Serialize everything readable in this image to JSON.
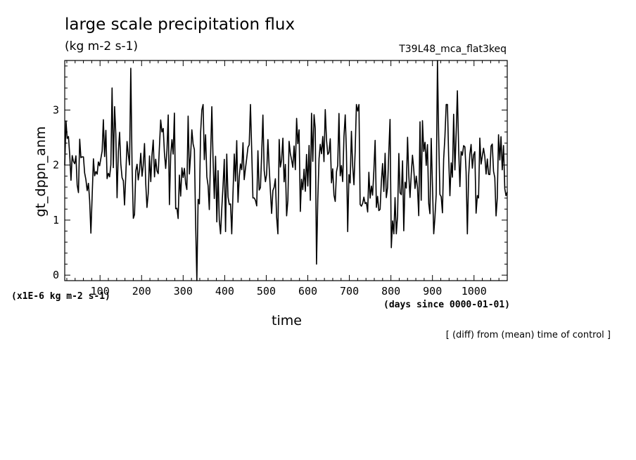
{
  "chart_data": {
    "type": "line",
    "title": "large scale precipitation flux",
    "units": "(kg m-2 s-1)",
    "experiment": "T39L48_mca_flat3keq",
    "ylabel": "gt_dppn_anm",
    "xlabel": "time",
    "y_units_label": "(x1E-6 kg m-2 s-1)",
    "x_units_label": "(days since 0000-01-01)",
    "note": "[ (diff) from (mean) time of control ]",
    "xlim": [
      15,
      1080
    ],
    "ylim": [
      -0.1,
      3.9
    ],
    "x_ticks": [
      100,
      200,
      300,
      400,
      500,
      600,
      700,
      800,
      900,
      1000
    ],
    "y_ticks": [
      0,
      1,
      2,
      3
    ],
    "series_style": {
      "color": "#000000"
    },
    "sample_interval_days": 3,
    "y_mean": 1.9,
    "y_sd": 0.55,
    "features": [
      {
        "x": 130,
        "y": 3.4
      },
      {
        "x": 173,
        "y": 3.76
      },
      {
        "x": 332,
        "y": -0.1
      },
      {
        "x": 622,
        "y": 0.2
      },
      {
        "x": 800,
        "y": 0.5
      },
      {
        "x": 912,
        "y": 3.9
      },
      {
        "x": 960,
        "y": 3.35
      }
    ]
  }
}
